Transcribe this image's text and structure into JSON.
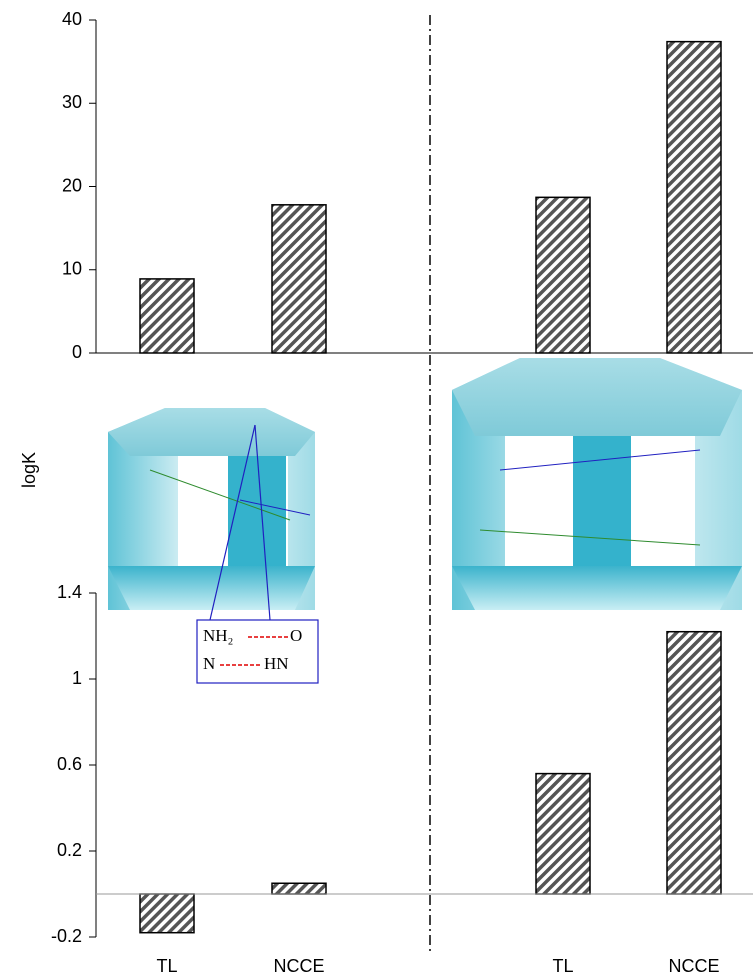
{
  "chart_data": [
    {
      "type": "bar",
      "y_label": "logK",
      "values": [
        8.9,
        17.8,
        18.7,
        37.4
      ],
      "color": "#555555",
      "ylim": [
        0,
        40
      ],
      "yticks": [
        0,
        10,
        20,
        30,
        40
      ]
    },
    {
      "type": "bar",
      "categories": [
        "TL",
        "NCCE",
        "TL",
        "NCCE"
      ],
      "values": [
        -0.18,
        0.05,
        0.56,
        1.22
      ],
      "color": "#555555",
      "ylim": [
        -0.2,
        1.4
      ],
      "yticks": [
        -0.2,
        0.2,
        0.6,
        1,
        1.4
      ],
      "annotations": [
        {
          "left": "NH₂",
          "right": "O",
          "left_color": "#2e8b2e",
          "right_color": "#2020c0"
        },
        {
          "left": "N",
          "right": "HN",
          "left_color": "#2e8b2e",
          "right_color": "#2020c0"
        }
      ]
    }
  ]
}
